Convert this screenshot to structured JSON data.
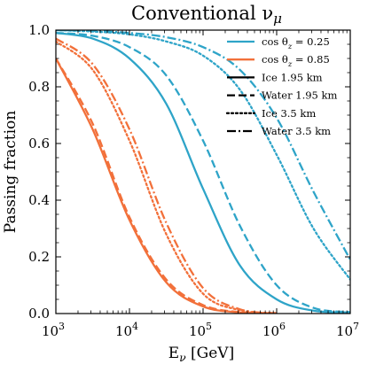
{
  "chart_data": {
    "type": "line",
    "title": "Conventional ν_μ",
    "xlabel": "E_ν [GeV]",
    "ylabel": "Passing fraction",
    "xscale": "log",
    "xlim": [
      1000,
      10000000
    ],
    "ylim": [
      0.0,
      1.0
    ],
    "grid": false,
    "legend_position": "top-right",
    "x_ticks": [
      {
        "value": 1000,
        "base": "10",
        "exp": "3"
      },
      {
        "value": 10000,
        "base": "10",
        "exp": "4"
      },
      {
        "value": 100000,
        "base": "10",
        "exp": "5"
      },
      {
        "value": 1000000,
        "base": "10",
        "exp": "6"
      },
      {
        "value": 10000000,
        "base": "10",
        "exp": "7"
      }
    ],
    "y_ticks": [
      {
        "value": 0.0,
        "label": "0.0"
      },
      {
        "value": 0.2,
        "label": "0.2"
      },
      {
        "value": 0.4,
        "label": "0.4"
      },
      {
        "value": 0.6,
        "label": "0.6"
      },
      {
        "value": 0.8,
        "label": "0.8"
      },
      {
        "value": 1.0,
        "label": "1.0"
      }
    ],
    "colors": {
      "cos_025": "#2ea4c8",
      "cos_085": "#f2703a"
    },
    "legend": [
      {
        "label": "cos θ_z = 0.25",
        "color": "#2ea4c8",
        "style": "solid"
      },
      {
        "label": "cos θ_z = 0.85",
        "color": "#f2703a",
        "style": "solid"
      },
      {
        "label": "Ice 1.95 km",
        "color": "#000000",
        "style": "solid"
      },
      {
        "label": "Water 1.95 km",
        "color": "#000000",
        "style": "dashed"
      },
      {
        "label": "Ice 3.5 km",
        "color": "#000000",
        "style": "dotted"
      },
      {
        "label": "Water 3.5 km",
        "color": "#000000",
        "style": "dashdot"
      }
    ],
    "series": [
      {
        "group": "cos θ_z = 0.25",
        "medium": "Ice 1.95 km",
        "color": "#2ea4c8",
        "style": "solid",
        "x": [
          1000,
          3162,
          10000,
          31623,
          100000,
          316228,
          1000000,
          3162278,
          10000000
        ],
        "y": [
          0.99,
          0.97,
          0.9,
          0.74,
          0.44,
          0.17,
          0.05,
          0.01,
          0.004
        ]
      },
      {
        "group": "cos θ_z = 0.25",
        "medium": "Water 1.95 km",
        "color": "#2ea4c8",
        "style": "dashed",
        "x": [
          1000,
          3162,
          10000,
          31623,
          100000,
          316228,
          1000000,
          3162278,
          10000000
        ],
        "y": [
          0.99,
          0.98,
          0.94,
          0.84,
          0.61,
          0.31,
          0.1,
          0.02,
          0.005
        ]
      },
      {
        "group": "cos θ_z = 0.25",
        "medium": "Ice 3.5 km",
        "color": "#2ea4c8",
        "style": "dotted",
        "x": [
          1000,
          3162,
          10000,
          31623,
          100000,
          316228,
          1000000,
          3162278,
          10000000
        ],
        "y": [
          1.0,
          0.995,
          0.985,
          0.96,
          0.91,
          0.79,
          0.56,
          0.3,
          0.12
        ]
      },
      {
        "group": "cos θ_z = 0.25",
        "medium": "Water 3.5 km",
        "color": "#2ea4c8",
        "style": "dashdot",
        "x": [
          1000,
          3162,
          10000,
          31623,
          100000,
          316228,
          1000000,
          3162278,
          10000000
        ],
        "y": [
          1.0,
          0.997,
          0.99,
          0.975,
          0.94,
          0.86,
          0.69,
          0.43,
          0.19
        ]
      },
      {
        "group": "cos θ_z = 0.85",
        "medium": "Ice 1.95 km",
        "color": "#f2703a",
        "style": "solid",
        "x": [
          1000,
          3162,
          10000,
          31623,
          100000,
          316228,
          1000000
        ],
        "y": [
          0.9,
          0.65,
          0.33,
          0.11,
          0.025,
          0.004,
          0.0
        ]
      },
      {
        "group": "cos θ_z = 0.85",
        "medium": "Water 1.95 km",
        "color": "#f2703a",
        "style": "dashed",
        "x": [
          1000,
          3162,
          10000,
          31623,
          100000,
          316228,
          1000000
        ],
        "y": [
          0.9,
          0.67,
          0.34,
          0.12,
          0.03,
          0.005,
          0.0
        ]
      },
      {
        "group": "cos θ_z = 0.85",
        "medium": "Ice 3.5 km",
        "color": "#f2703a",
        "style": "dotted",
        "x": [
          1000,
          3162,
          10000,
          31623,
          100000,
          316228,
          1000000
        ],
        "y": [
          0.96,
          0.86,
          0.61,
          0.28,
          0.07,
          0.012,
          0.001
        ]
      },
      {
        "group": "cos θ_z = 0.85",
        "medium": "Water 3.5 km",
        "color": "#f2703a",
        "style": "dashdot",
        "x": [
          1000,
          3162,
          10000,
          31623,
          100000,
          316228,
          1000000
        ],
        "y": [
          0.97,
          0.88,
          0.65,
          0.32,
          0.09,
          0.015,
          0.001
        ]
      }
    ]
  }
}
